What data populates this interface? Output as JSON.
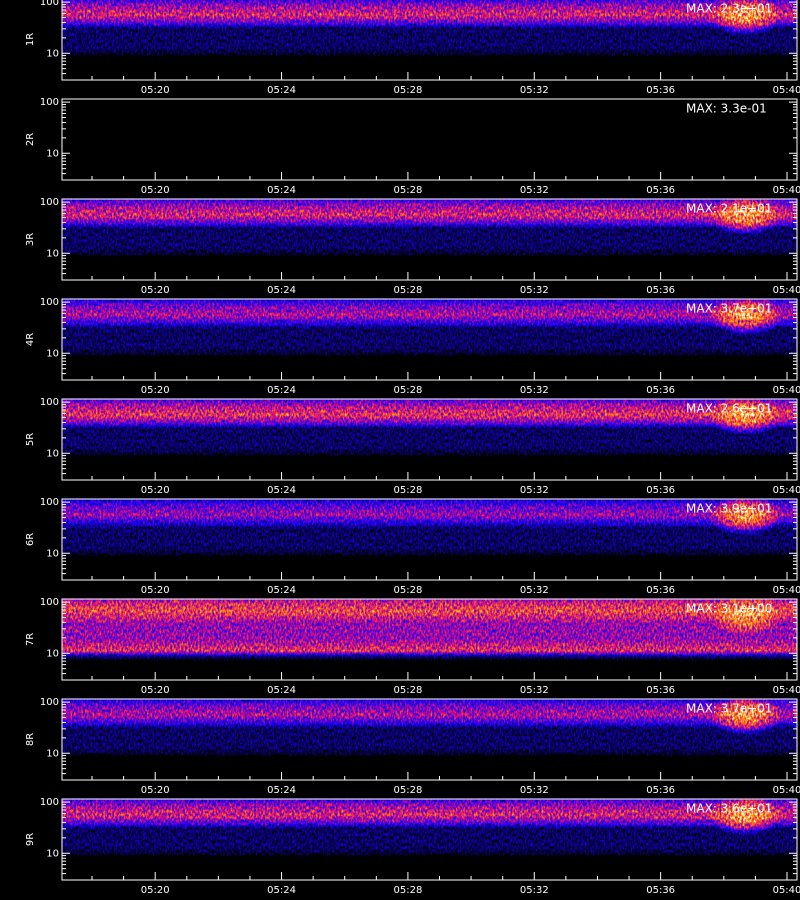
{
  "panels": [
    {
      "label": "1R",
      "max_label": "MAX: 2.3e+01"
    },
    {
      "label": "2R",
      "max_label": "MAX: 3.3e-01"
    },
    {
      "label": "3R",
      "max_label": "MAX: 2.1e+01"
    },
    {
      "label": "4R",
      "max_label": "MAX: 3.7e+01"
    },
    {
      "label": "5R",
      "max_label": "MAX: 2.6e+01"
    },
    {
      "label": "6R",
      "max_label": "MAX: 3.9e+01"
    },
    {
      "label": "7R",
      "max_label": "MAX: 3.1e+00"
    },
    {
      "label": "8R",
      "max_label": "MAX: 3.7e+01"
    },
    {
      "label": "9R",
      "max_label": "MAX: 3.6e+01"
    }
  ],
  "x_axis": {
    "xlim": [
      "05:17:03",
      "05:40:19"
    ],
    "xticks": [
      "05:20",
      "05:24",
      "05:28",
      "05:32",
      "05:36",
      "05:40"
    ]
  },
  "y_axis": {
    "ylim": [
      3,
      115
    ],
    "yticks": [
      10,
      100
    ],
    "log": true
  }
}
